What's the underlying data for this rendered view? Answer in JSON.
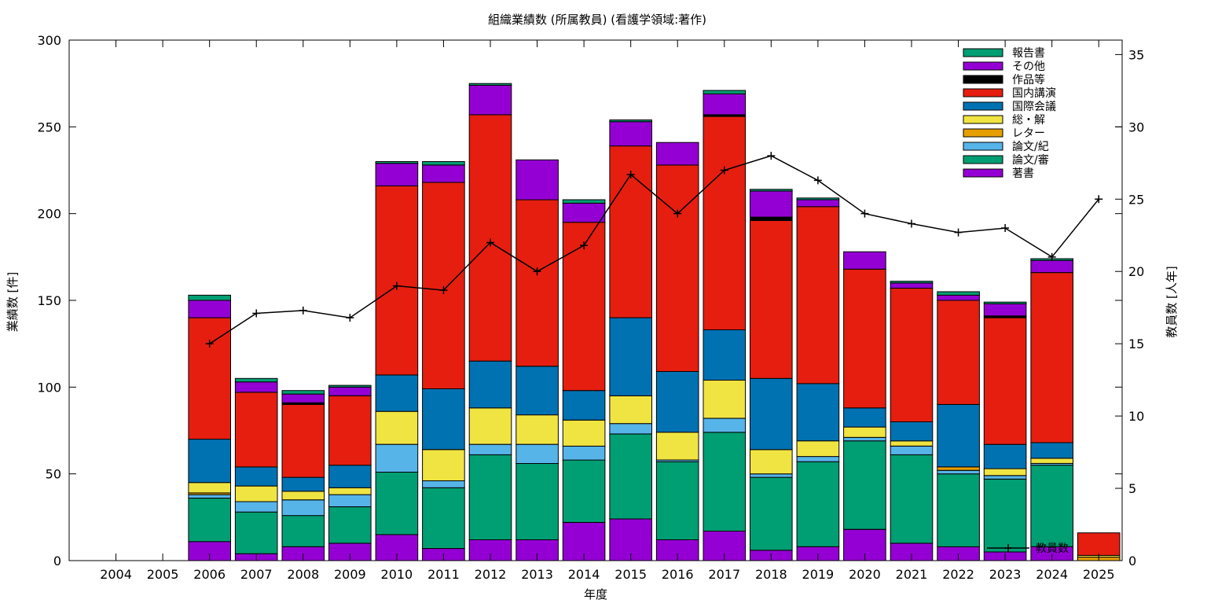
{
  "chart_data": {
    "type": "bar",
    "title": "組織業績数 (所属教員) (看護学領域:著作)",
    "xlabel": "年度",
    "ylabel": "業績数 [件]",
    "y2label": "教員数 [人年]",
    "ylim": [
      0,
      300
    ],
    "y2lim": [
      0,
      36
    ],
    "yticks": [
      "0",
      "50",
      "100",
      "150",
      "200",
      "250",
      "300"
    ],
    "y2ticks": [
      "0",
      "5",
      "10",
      "15",
      "20",
      "25",
      "30",
      "35"
    ],
    "categories": [
      "2004",
      "2005",
      "2006",
      "2007",
      "2008",
      "2009",
      "2010",
      "2011",
      "2012",
      "2013",
      "2014",
      "2015",
      "2016",
      "2017",
      "2018",
      "2019",
      "2020",
      "2021",
      "2022",
      "2023",
      "2024",
      "2025"
    ],
    "stacked": true,
    "grid": false,
    "legend_position": "top-right",
    "series": [
      {
        "name": "著書",
        "color": "#9400d3",
        "values": [
          0,
          0,
          11,
          4,
          8,
          10,
          15,
          7,
          12,
          12,
          22,
          24,
          12,
          17,
          6,
          8,
          18,
          10,
          8,
          5,
          8,
          0
        ]
      },
      {
        "name": "論文/審",
        "color": "#009e73",
        "values": [
          0,
          0,
          25,
          24,
          18,
          21,
          36,
          35,
          49,
          44,
          36,
          49,
          45,
          57,
          42,
          49,
          51,
          51,
          42,
          42,
          47,
          0
        ]
      },
      {
        "name": "論文/紀",
        "color": "#56b4e9",
        "values": [
          0,
          0,
          2,
          6,
          9,
          7,
          16,
          4,
          6,
          11,
          8,
          6,
          1,
          8,
          2,
          3,
          2,
          5,
          2,
          2,
          1,
          0
        ]
      },
      {
        "name": "レター",
        "color": "#e69f00",
        "values": [
          0,
          0,
          1,
          0,
          0,
          0,
          0,
          0,
          0,
          0,
          0,
          0,
          0,
          0,
          0,
          0,
          0,
          0,
          2,
          0,
          0,
          2
        ]
      },
      {
        "name": "総・解",
        "color": "#f0e442",
        "values": [
          0,
          0,
          6,
          9,
          5,
          4,
          19,
          18,
          21,
          17,
          15,
          16,
          16,
          22,
          14,
          9,
          6,
          3,
          0,
          4,
          3,
          1
        ]
      },
      {
        "name": "国際会議",
        "color": "#0072b2",
        "values": [
          0,
          0,
          25,
          11,
          8,
          13,
          21,
          35,
          27,
          28,
          17,
          45,
          35,
          29,
          41,
          33,
          11,
          11,
          36,
          14,
          9,
          0
        ]
      },
      {
        "name": "国内講演",
        "color": "#e51e10",
        "values": [
          0,
          0,
          70,
          43,
          42,
          40,
          109,
          119,
          142,
          96,
          97,
          99,
          119,
          123,
          91,
          102,
          80,
          77,
          60,
          73,
          98,
          13
        ]
      },
      {
        "name": "作品等",
        "color": "#000000",
        "values": [
          0,
          0,
          0,
          0,
          1,
          0,
          0,
          0,
          0,
          0,
          0,
          0,
          0,
          1,
          2,
          0,
          0,
          0,
          0,
          1,
          0,
          0
        ]
      },
      {
        "name": "その他",
        "color": "#9400d3",
        "values": [
          0,
          0,
          10,
          6,
          5,
          5,
          13,
          10,
          17,
          23,
          11,
          14,
          13,
          12,
          15,
          4,
          10,
          3,
          3,
          7,
          7,
          0
        ]
      },
      {
        "name": "報告書",
        "color": "#009e73",
        "values": [
          0,
          0,
          3,
          2,
          2,
          1,
          1,
          2,
          1,
          0,
          2,
          1,
          0,
          2,
          1,
          1,
          0,
          1,
          2,
          1,
          1,
          0
        ]
      }
    ],
    "line_series": {
      "name": "教員数",
      "color": "#000000",
      "axis": "y2",
      "values": [
        null,
        null,
        15,
        17.1,
        17.3,
        16.8,
        19,
        18.7,
        22,
        20,
        21.8,
        26.7,
        24,
        27,
        28,
        26.3,
        24,
        23.3,
        22.7,
        23,
        21,
        25
      ]
    }
  }
}
